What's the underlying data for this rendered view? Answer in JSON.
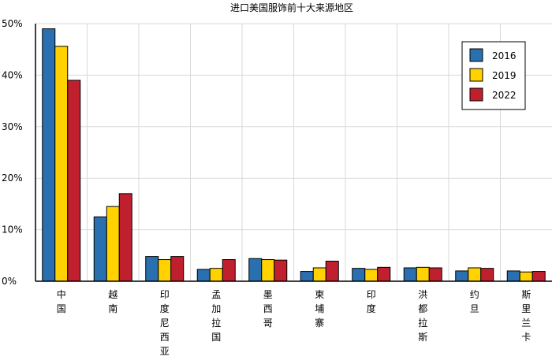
{
  "chart_data": {
    "type": "bar",
    "title": "进口美国服饰前十大来源地区",
    "xlabel": "",
    "ylabel": "",
    "ylim": [
      0,
      50
    ],
    "yticks": [
      0,
      10,
      20,
      30,
      40,
      50
    ],
    "ytick_labels": [
      "0%",
      "10%",
      "20%",
      "30%",
      "40%",
      "50%"
    ],
    "grid": true,
    "legend_position": "top-right",
    "categories": [
      "中国",
      "越南",
      "印度尼西亚",
      "孟加拉国",
      "墨西哥",
      "柬埔寨",
      "印度",
      "洪都拉斯",
      "约旦",
      "斯里兰卡"
    ],
    "series": [
      {
        "name": "2016",
        "color": "#2a6fb0",
        "values": [
          49.0,
          12.5,
          4.8,
          2.3,
          4.4,
          1.9,
          2.5,
          2.6,
          2.0,
          2.0
        ]
      },
      {
        "name": "2019",
        "color": "#ffd200",
        "values": [
          45.6,
          14.5,
          4.2,
          2.5,
          4.2,
          2.6,
          2.3,
          2.7,
          2.6,
          1.8
        ]
      },
      {
        "name": "2022",
        "color": "#c0202e",
        "values": [
          39.0,
          17.0,
          4.8,
          4.2,
          4.1,
          3.9,
          2.7,
          2.6,
          2.5,
          1.9
        ]
      }
    ]
  }
}
